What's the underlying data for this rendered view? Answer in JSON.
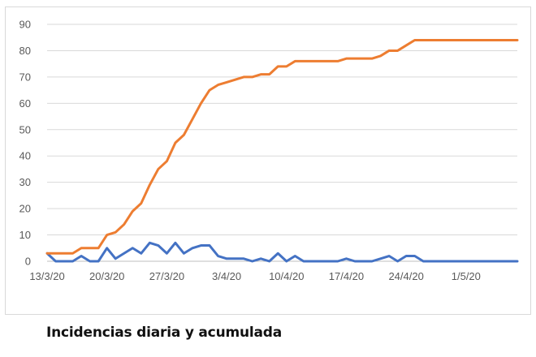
{
  "caption": "Incidencias diaria y acumulada",
  "chart_data": {
    "type": "line",
    "title": "",
    "xlabel": "",
    "ylabel": "",
    "ylim": [
      0,
      90
    ],
    "yticks": [
      0,
      10,
      20,
      30,
      40,
      50,
      60,
      70,
      80,
      90
    ],
    "grid": true,
    "legend": "none",
    "x_start": "13/3/20",
    "x_tick_labels": [
      "13/3/20",
      "20/3/20",
      "27/3/20",
      "3/4/20",
      "10/4/20",
      "17/4/20",
      "24/4/20",
      "1/5/20"
    ],
    "x": [
      "13/3/20",
      "14/3/20",
      "15/3/20",
      "16/3/20",
      "17/3/20",
      "18/3/20",
      "19/3/20",
      "20/3/20",
      "21/3/20",
      "22/3/20",
      "23/3/20",
      "24/3/20",
      "25/3/20",
      "26/3/20",
      "27/3/20",
      "28/3/20",
      "29/3/20",
      "30/3/20",
      "31/3/20",
      "1/4/20",
      "2/4/20",
      "3/4/20",
      "4/4/20",
      "5/4/20",
      "6/4/20",
      "7/4/20",
      "8/4/20",
      "9/4/20",
      "10/4/20",
      "11/4/20",
      "12/4/20",
      "13/4/20",
      "14/4/20",
      "15/4/20",
      "16/4/20",
      "17/4/20",
      "18/4/20",
      "19/4/20",
      "20/4/20",
      "21/4/20",
      "22/4/20",
      "23/4/20",
      "24/4/20",
      "25/4/20",
      "26/4/20",
      "27/4/20",
      "28/4/20",
      "29/4/20",
      "30/4/20",
      "1/5/20",
      "2/5/20",
      "3/5/20",
      "4/5/20",
      "5/5/20",
      "6/5/20",
      "7/5/20"
    ],
    "series": [
      {
        "color": "#4472c4",
        "values": [
          3,
          0,
          0,
          0,
          2,
          0,
          0,
          5,
          1,
          3,
          5,
          3,
          7,
          6,
          3,
          7,
          3,
          5,
          6,
          6,
          2,
          1,
          1,
          1,
          0,
          1,
          0,
          3,
          0,
          2,
          0,
          0,
          0,
          0,
          0,
          1,
          0,
          0,
          0,
          1,
          2,
          0,
          2,
          2,
          0,
          0,
          0,
          0,
          0,
          0,
          0,
          0,
          0,
          0,
          0,
          0
        ]
      },
      {
        "color": "#ed7d31",
        "values": [
          3,
          3,
          3,
          3,
          5,
          5,
          5,
          10,
          11,
          14,
          19,
          22,
          29,
          35,
          38,
          45,
          48,
          54,
          60,
          65,
          67,
          68,
          69,
          70,
          70,
          71,
          71,
          74,
          74,
          76,
          76,
          76,
          76,
          76,
          76,
          77,
          77,
          77,
          77,
          78,
          80,
          80,
          82,
          84,
          84,
          84,
          84,
          84,
          84,
          84,
          84,
          84,
          84,
          84,
          84,
          84
        ]
      }
    ]
  }
}
